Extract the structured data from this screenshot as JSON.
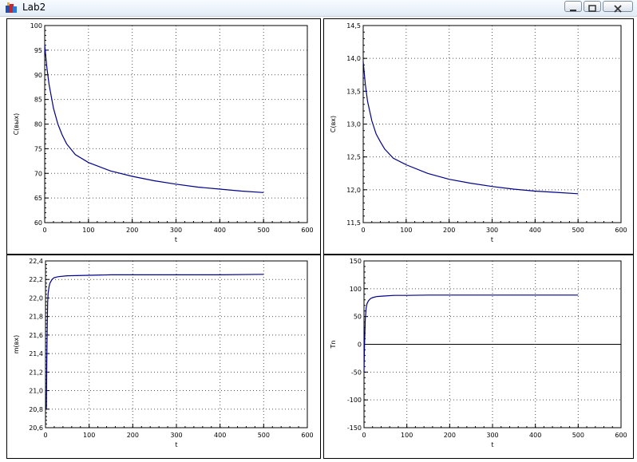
{
  "window": {
    "title": "Lab2"
  },
  "colors": {
    "curve": "#00008b",
    "grid": "#555555",
    "background": "#ffffff"
  },
  "chart_data": [
    {
      "type": "line",
      "xlabel": "t",
      "ylabel": "C(вых)",
      "xlim": [
        0,
        600
      ],
      "ylim": [
        60,
        100
      ],
      "xticks": [
        0,
        100,
        200,
        300,
        400,
        500,
        600
      ],
      "yticks": [
        60,
        65,
        70,
        75,
        80,
        85,
        90,
        95,
        100
      ],
      "ytick_labels": [
        "60",
        "65",
        "70",
        "75",
        "80",
        "85",
        "90",
        "95",
        "100"
      ],
      "grid": true,
      "series": [
        {
          "x": [
            0,
            5,
            10,
            20,
            30,
            40,
            50,
            70,
            100,
            150,
            200,
            250,
            300,
            350,
            400,
            450,
            500
          ],
          "y": [
            96,
            91.5,
            88,
            83.2,
            80,
            77.8,
            76,
            73.8,
            72.2,
            70.5,
            69.4,
            68.5,
            67.8,
            67.2,
            66.8,
            66.4,
            66.1
          ]
        }
      ]
    },
    {
      "type": "line",
      "xlabel": "t",
      "ylabel": "C(вх)",
      "xlim": [
        0,
        600
      ],
      "ylim": [
        11.5,
        14.5
      ],
      "xticks": [
        0,
        100,
        200,
        300,
        400,
        500,
        600
      ],
      "yticks": [
        11.5,
        12,
        12.5,
        13,
        13.5,
        14,
        14.5
      ],
      "ytick_labels": [
        "11,5",
        "12,0",
        "12,5",
        "13,0",
        "13,5",
        "14,0",
        "14,5"
      ],
      "grid": true,
      "series": [
        {
          "x": [
            0,
            5,
            10,
            20,
            30,
            40,
            50,
            70,
            100,
            150,
            200,
            250,
            300,
            350,
            400,
            450,
            500
          ],
          "y": [
            13.95,
            13.6,
            13.35,
            13.05,
            12.85,
            12.73,
            12.62,
            12.48,
            12.38,
            12.25,
            12.16,
            12.1,
            12.05,
            12.01,
            11.98,
            11.96,
            11.94
          ]
        }
      ]
    },
    {
      "type": "line",
      "xlabel": "t",
      "ylabel": "m(вх)",
      "xlim": [
        0,
        600
      ],
      "ylim": [
        20.6,
        22.4
      ],
      "xticks": [
        0,
        100,
        200,
        300,
        400,
        500,
        600
      ],
      "yticks": [
        20.6,
        20.8,
        21,
        21.2,
        21.4,
        21.6,
        21.8,
        22,
        22.2,
        22.4
      ],
      "ytick_labels": [
        "20,6",
        "20,8",
        "21,0",
        "21,2",
        "21,4",
        "21,6",
        "21,8",
        "22,0",
        "22,2",
        "22,4"
      ],
      "grid": true,
      "series": [
        {
          "x": [
            2,
            3,
            4,
            5,
            6,
            8,
            10,
            15,
            20,
            30,
            50,
            100,
            150,
            200,
            300,
            400,
            500
          ],
          "y": [
            20.8,
            21.3,
            21.7,
            21.95,
            22.05,
            22.12,
            22.16,
            22.2,
            22.22,
            22.23,
            22.24,
            22.245,
            22.25,
            22.25,
            22.25,
            22.25,
            22.255
          ]
        }
      ]
    },
    {
      "type": "line",
      "xlabel": "t",
      "ylabel": "Tn",
      "xlim": [
        0,
        600
      ],
      "ylim": [
        -150,
        150
      ],
      "xticks": [
        0,
        100,
        200,
        300,
        400,
        500,
        600
      ],
      "yticks": [
        -150,
        -100,
        -50,
        0,
        50,
        100,
        150
      ],
      "ytick_labels": [
        "-150",
        "-100",
        "-50",
        "0",
        "50",
        "100",
        "150"
      ],
      "grid": true,
      "zero_line": true,
      "series": [
        {
          "x": [
            0,
            1,
            2,
            3,
            5,
            7,
            10,
            15,
            20,
            30,
            50,
            70,
            100,
            150,
            200,
            300,
            400,
            500
          ],
          "y": [
            -50,
            -10,
            20,
            45,
            65,
            73,
            78,
            82,
            84,
            86,
            87,
            88,
            88,
            88.5,
            88.5,
            88.5,
            88.5,
            88.5
          ]
        }
      ]
    }
  ]
}
